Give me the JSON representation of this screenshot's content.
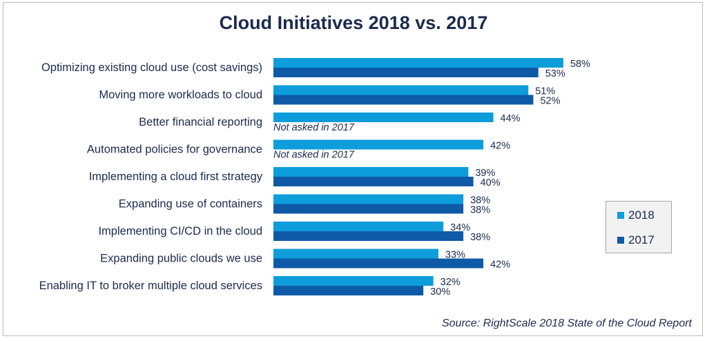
{
  "chart_data": {
    "type": "bar",
    "orientation": "horizontal",
    "title": "Cloud Initiatives 2018 vs. 2017",
    "categories": [
      "Optimizing existing cloud use (cost savings)",
      "Moving more workloads to cloud",
      "Better financial reporting",
      "Automated policies for governance",
      "Implementing a cloud first strategy",
      "Expanding use of containers",
      "Implementing CI/CD in the cloud",
      "Expanding public clouds we use",
      "Enabling IT to broker multiple cloud services"
    ],
    "series": [
      {
        "name": "2018",
        "color": "#0d9ddb",
        "values": [
          58,
          51,
          44,
          42,
          39,
          38,
          34,
          33,
          32
        ]
      },
      {
        "name": "2017",
        "color": "#0e5aa7",
        "values": [
          53,
          52,
          null,
          null,
          40,
          38,
          38,
          42,
          30
        ]
      }
    ],
    "value_suffix": "%",
    "missing_label": "Not asked in 2017",
    "xlim": [
      0,
      58
    ],
    "grid": false,
    "legend_position": "right"
  },
  "source": "Source: RightScale 2018 State of the Cloud Report"
}
